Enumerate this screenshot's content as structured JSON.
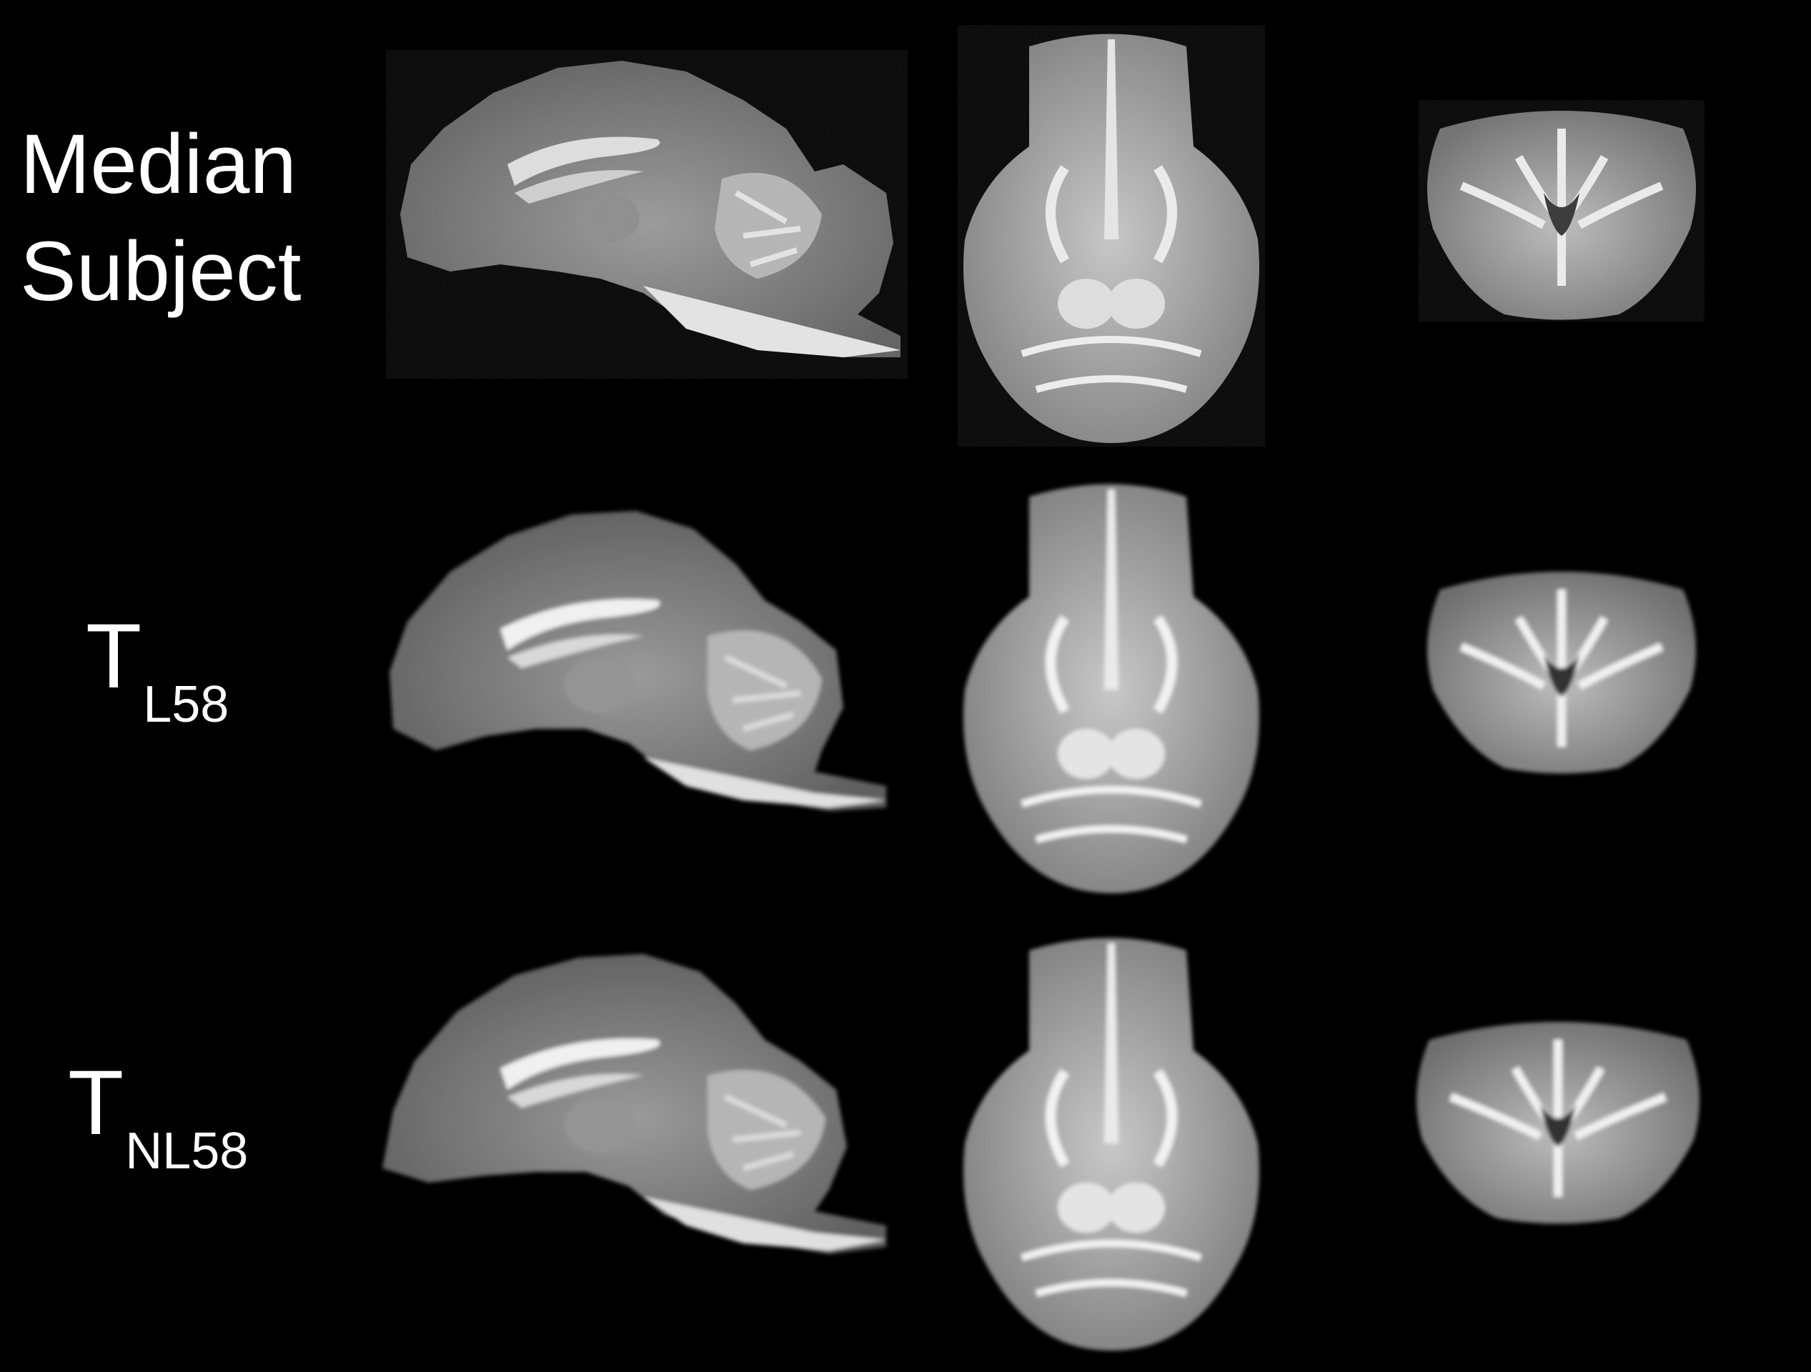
{
  "rows": [
    {
      "label_line1": "Median",
      "label_line2": "Subject"
    },
    {
      "label_main": "T",
      "label_sub": "L58"
    },
    {
      "label_main": "T",
      "label_sub": "NL58"
    }
  ],
  "views": [
    "sagittal",
    "axial",
    "coronal"
  ]
}
